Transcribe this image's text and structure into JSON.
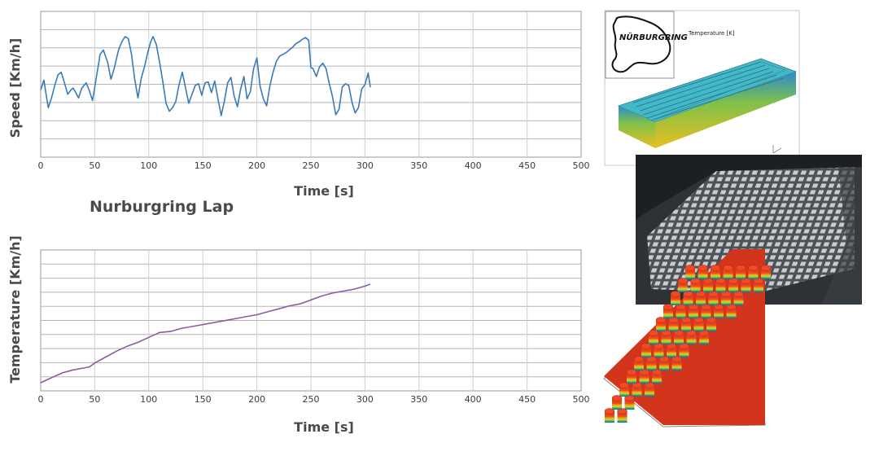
{
  "caption": "Nurburgring Lap",
  "chart_data": [
    {
      "type": "line",
      "xlabel": "Time [s]",
      "ylabel": "Speed [Km/h]",
      "xlim": [
        0,
        500
      ],
      "x_ticks": [
        0,
        50,
        100,
        150,
        200,
        250,
        300,
        350,
        400,
        450,
        500
      ],
      "y_gridlines": 7,
      "grid": true,
      "color": "#3a7ab8",
      "series": [
        {
          "x": [
            0,
            3,
            5,
            7,
            10,
            13,
            16,
            19,
            22,
            25,
            28,
            30,
            32,
            35,
            38,
            42,
            45,
            48,
            52,
            55,
            58,
            62,
            65,
            68,
            72,
            75,
            78,
            81,
            84,
            87,
            90,
            93,
            96,
            99,
            102,
            104,
            107,
            110,
            113,
            116,
            119,
            122,
            125,
            128,
            131,
            134,
            137,
            140,
            143,
            146,
            149,
            152,
            155,
            158,
            161,
            164,
            167,
            170,
            173,
            176,
            179,
            182,
            185,
            188,
            191,
            194,
            197,
            200,
            203,
            206,
            209,
            212,
            215,
            218,
            221,
            224,
            227,
            230,
            233,
            236,
            239,
            242,
            245,
            248,
            250,
            252,
            255,
            258,
            261,
            264,
            267,
            270,
            273,
            276,
            279,
            282,
            285,
            288,
            291,
            294,
            297,
            300,
            303,
            305
          ],
          "y": [
            0.4,
            0.51,
            0.35,
            0.2,
            0.31,
            0.45,
            0.57,
            0.6,
            0.48,
            0.35,
            0.4,
            0.42,
            0.38,
            0.31,
            0.42,
            0.48,
            0.39,
            0.28,
            0.58,
            0.8,
            0.85,
            0.71,
            0.52,
            0.64,
            0.85,
            0.94,
            1.0,
            0.98,
            0.8,
            0.52,
            0.31,
            0.53,
            0.66,
            0.82,
            0.95,
            1.0,
            0.91,
            0.71,
            0.49,
            0.25,
            0.16,
            0.2,
            0.27,
            0.46,
            0.6,
            0.42,
            0.25,
            0.35,
            0.45,
            0.47,
            0.34,
            0.48,
            0.49,
            0.37,
            0.5,
            0.3,
            0.11,
            0.28,
            0.48,
            0.54,
            0.33,
            0.21,
            0.41,
            0.55,
            0.3,
            0.38,
            0.64,
            0.76,
            0.44,
            0.3,
            0.22,
            0.44,
            0.6,
            0.72,
            0.78,
            0.8,
            0.82,
            0.85,
            0.88,
            0.92,
            0.94,
            0.97,
            0.99,
            0.96,
            0.65,
            0.64,
            0.55,
            0.66,
            0.7,
            0.64,
            0.47,
            0.32,
            0.12,
            0.18,
            0.43,
            0.47,
            0.45,
            0.26,
            0.14,
            0.2,
            0.41,
            0.46,
            0.59,
            0.43
          ]
        }
      ]
    },
    {
      "type": "line",
      "xlabel": "Time [s]",
      "ylabel": "Temperature [Km/h]",
      "xlim": [
        0,
        500
      ],
      "x_ticks": [
        0,
        50,
        100,
        150,
        200,
        250,
        300,
        350,
        400,
        450,
        500
      ],
      "y_gridlines": 9,
      "grid": true,
      "color": "#8a5aa6",
      "series": [
        {
          "x": [
            0,
            10,
            20,
            30,
            40,
            45,
            50,
            60,
            70,
            80,
            90,
            100,
            110,
            120,
            130,
            140,
            150,
            160,
            170,
            180,
            190,
            200,
            210,
            220,
            230,
            240,
            250,
            260,
            270,
            280,
            290,
            300,
            305
          ],
          "y": [
            0.0,
            0.05,
            0.1,
            0.13,
            0.15,
            0.16,
            0.2,
            0.26,
            0.32,
            0.37,
            0.41,
            0.46,
            0.51,
            0.52,
            0.55,
            0.57,
            0.59,
            0.61,
            0.63,
            0.65,
            0.67,
            0.69,
            0.72,
            0.75,
            0.78,
            0.8,
            0.84,
            0.88,
            0.91,
            0.93,
            0.95,
            0.98,
            1.0
          ]
        }
      ]
    }
  ],
  "inset": {
    "logo": "NÜRBURGRING",
    "label": "Temperature [K]"
  }
}
